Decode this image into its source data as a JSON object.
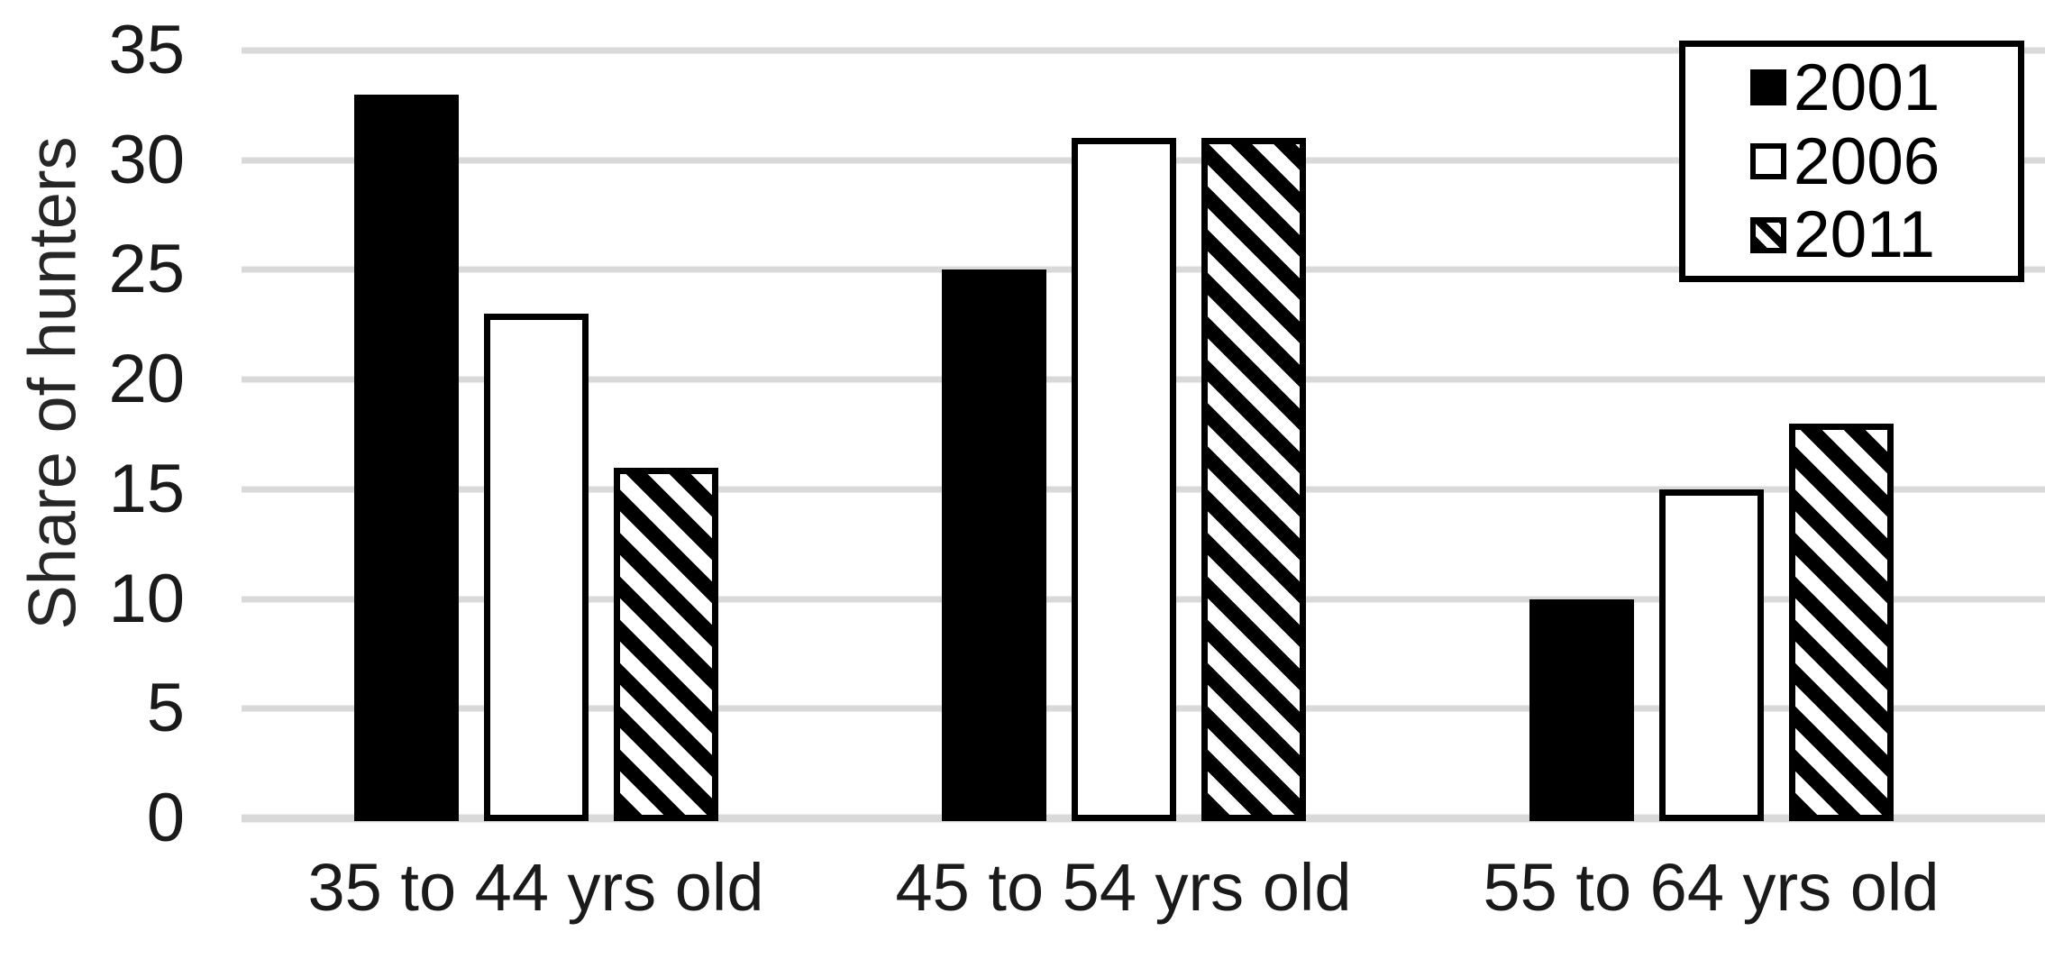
{
  "chart_data": {
    "type": "bar",
    "title": "",
    "ylabel": "Share of hunters",
    "categories": [
      "35 to 44 yrs old",
      "45 to 54 yrs old",
      "55 to 64 yrs old"
    ],
    "series": [
      {
        "name": "2001",
        "style": "solid-black",
        "values": [
          33,
          25,
          10
        ]
      },
      {
        "name": "2006",
        "style": "white-outlined",
        "values": [
          23,
          31,
          15
        ]
      },
      {
        "name": "2011",
        "style": "diagonal-hatch",
        "values": [
          16,
          31,
          18
        ]
      }
    ],
    "ylim": [
      0,
      35
    ],
    "yticks": [
      0,
      5,
      10,
      15,
      20,
      25,
      30,
      35
    ],
    "grid": true,
    "legend_position": "top-right"
  },
  "colors": {
    "bar_fill": "#000000",
    "bar_outline": "#000000",
    "background": "#ffffff",
    "gridline": "#d9d9d9",
    "text": "#1a1a1a"
  }
}
